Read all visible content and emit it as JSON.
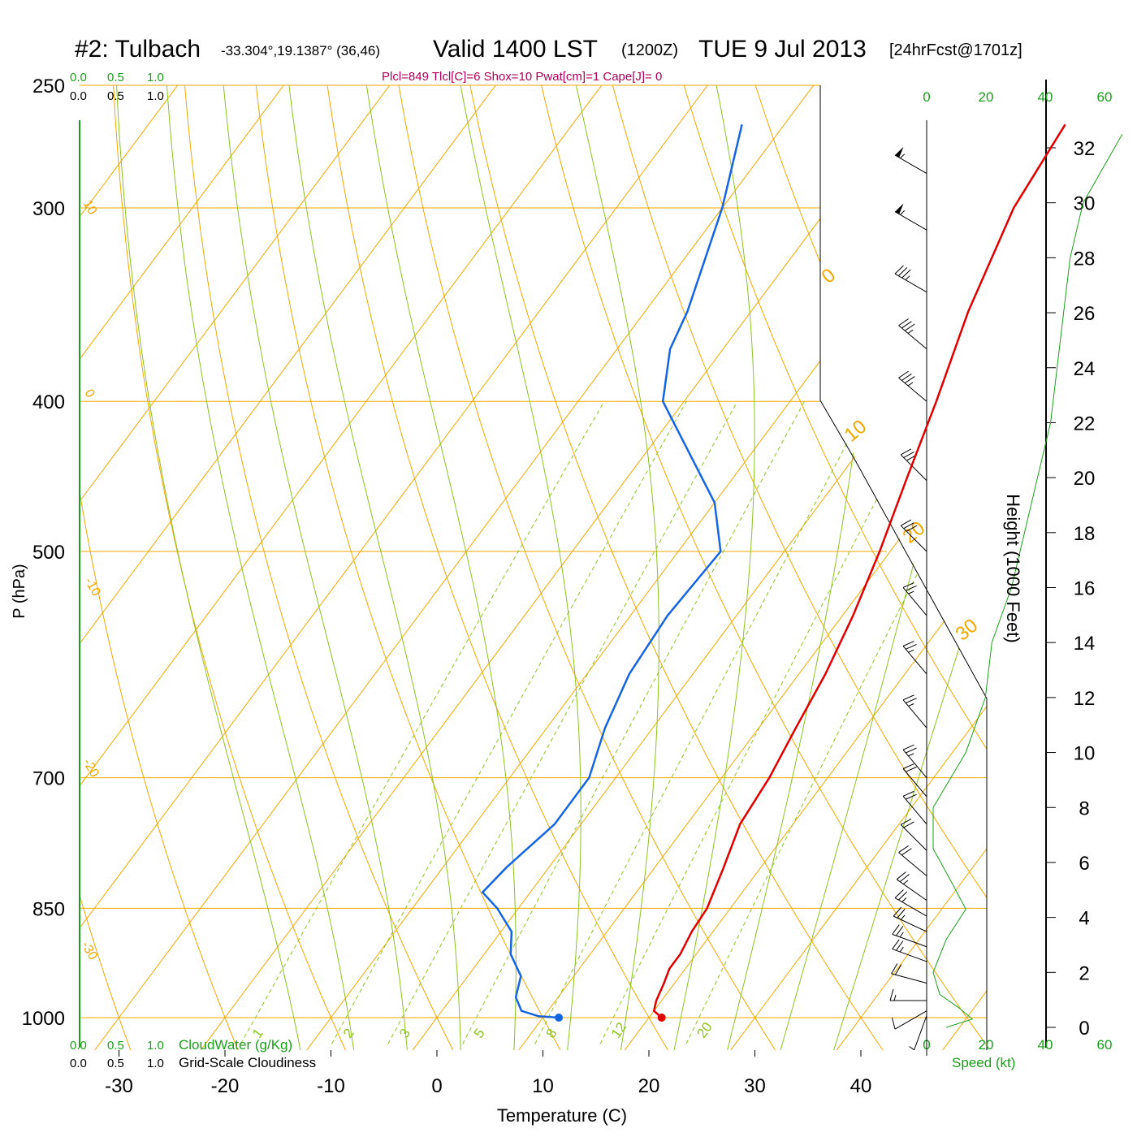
{
  "header": {
    "station": "#2: Tulbach",
    "coords": "-33.304°,19.1387° (36,46)",
    "valid": "Valid 1400 LST",
    "zulu": "(1200Z)",
    "date": "TUE 9 Jul 2013",
    "forecast": "[24hrFcst@1701z]",
    "indices": "Plcl=849 Tlcl[C]=6 Shox=10 Pwat[cm]=1 Cape[J]= 0"
  },
  "colors": {
    "temperature": "#e00000",
    "dewpoint": "#1565e0",
    "isobar_isotherm": "#f0a800",
    "dry_adiabat": "#f0a800",
    "moist_adiabat": "#8cc41e",
    "mixing_ratio": "#8cc41e",
    "green_text": "#1aa01a",
    "indices_text": "#b0005a"
  },
  "chart_data": {
    "type": "line",
    "title": "#2: Tulbach",
    "xlabel": "Temperature (C)",
    "ylabel": "P (hPa)",
    "y2label": "Height (1000 Feet)",
    "x_ticks": [
      -30,
      -20,
      -10,
      0,
      10,
      20,
      30,
      40
    ],
    "p_ticks": [
      250,
      300,
      400,
      500,
      700,
      850,
      1000
    ],
    "height_ticks": [
      0,
      2,
      4,
      6,
      8,
      10,
      12,
      14,
      16,
      18,
      20,
      22,
      24,
      26,
      28,
      30,
      32
    ],
    "x_range": [
      -34,
      36
    ],
    "p_range": [
      250,
      1000
    ],
    "height_range_kft": [
      0,
      32
    ],
    "dry_adiabat_labels": [
      "10",
      "0",
      "-10",
      "-20",
      "-30",
      "0",
      "10",
      "20",
      "30"
    ],
    "mixing_ratio_labels": [
      "1",
      "2",
      "3",
      "5",
      "8",
      "12",
      "20"
    ],
    "cloud_labels": {
      "cloudwater": "CloudWater (g/Kg)",
      "cloudiness": "Grid-Scale Cloudiness",
      "ticks": [
        "0.0",
        "0.5",
        "1.0"
      ]
    },
    "wind_axis": {
      "label": "Speed (kt)",
      "ticks": [
        "0",
        "20",
        "40",
        "60"
      ]
    },
    "series": [
      {
        "name": "Temperature",
        "points": [
          [
            1000,
            21.2
          ],
          [
            990,
            20.0
          ],
          [
            975,
            19.5
          ],
          [
            950,
            19.0
          ],
          [
            930,
            18.5
          ],
          [
            910,
            18.5
          ],
          [
            880,
            18.0
          ],
          [
            850,
            17.8
          ],
          [
            800,
            16.5
          ],
          [
            750,
            15.0
          ],
          [
            700,
            14.5
          ],
          [
            650,
            13.5
          ],
          [
            600,
            12.5
          ],
          [
            550,
            11.0
          ],
          [
            500,
            9.0
          ],
          [
            450,
            6.5
          ],
          [
            400,
            3.8
          ],
          [
            350,
            0.5
          ],
          [
            300,
            -2.5
          ],
          [
            265,
            -3.5
          ]
        ]
      },
      {
        "name": "Dewpoint",
        "points": [
          [
            1000,
            11.5
          ],
          [
            998,
            9.5
          ],
          [
            990,
            7.5
          ],
          [
            970,
            6.0
          ],
          [
            940,
            5.0
          ],
          [
            910,
            2.5
          ],
          [
            880,
            1.0
          ],
          [
            850,
            -2.0
          ],
          [
            830,
            -4.5
          ],
          [
            800,
            -4.0
          ],
          [
            750,
            -2.5
          ],
          [
            700,
            -2.5
          ],
          [
            650,
            -4.5
          ],
          [
            600,
            -6.0
          ],
          [
            550,
            -6.5
          ],
          [
            500,
            -6.0
          ],
          [
            465,
            -10.0
          ],
          [
            400,
            -22.0
          ],
          [
            370,
            -25.0
          ],
          [
            350,
            -26.0
          ],
          [
            300,
            -30.0
          ],
          [
            265,
            -34.0
          ]
        ]
      }
    ],
    "markers": [
      {
        "name": "surface temperature",
        "p": 1000,
        "t": 21.2
      },
      {
        "name": "surface dewpoint",
        "p": 1000,
        "t": 11.5
      }
    ],
    "winds": [
      {
        "p": 997,
        "h_kft": 0.2,
        "speed_kt": 5,
        "dir": 200
      },
      {
        "p": 990,
        "h_kft": 0.5,
        "speed_kt": 10,
        "dir": 240
      },
      {
        "p": 975,
        "h_kft": 1.0,
        "speed_kt": 15,
        "dir": 270
      },
      {
        "p": 950,
        "h_kft": 1.6,
        "speed_kt": 20,
        "dir": 285
      },
      {
        "p": 920,
        "h_kft": 2.6,
        "speed_kt": 25,
        "dir": 290
      },
      {
        "p": 900,
        "h_kft": 3.2,
        "speed_kt": 25,
        "dir": 290
      },
      {
        "p": 880,
        "h_kft": 3.8,
        "speed_kt": 25,
        "dir": 295
      },
      {
        "p": 860,
        "h_kft": 4.4,
        "speed_kt": 25,
        "dir": 300
      },
      {
        "p": 840,
        "h_kft": 5.1,
        "speed_kt": 25,
        "dir": 305
      },
      {
        "p": 810,
        "h_kft": 6.3,
        "speed_kt": 20,
        "dir": 310
      },
      {
        "p": 780,
        "h_kft": 7.3,
        "speed_kt": 20,
        "dir": 315
      },
      {
        "p": 750,
        "h_kft": 8.5,
        "speed_kt": 20,
        "dir": 320
      },
      {
        "p": 720,
        "h_kft": 9.6,
        "speed_kt": 20,
        "dir": 320
      },
      {
        "p": 700,
        "h_kft": 10.3,
        "speed_kt": 25,
        "dir": 320
      },
      {
        "p": 650,
        "h_kft": 12.3,
        "speed_kt": 25,
        "dir": 320
      },
      {
        "p": 600,
        "h_kft": 14.5,
        "speed_kt": 25,
        "dir": 320
      },
      {
        "p": 550,
        "h_kft": 16.8,
        "speed_kt": 25,
        "dir": 320
      },
      {
        "p": 500,
        "h_kft": 19.1,
        "speed_kt": 30,
        "dir": 315
      },
      {
        "p": 450,
        "h_kft": 21.7,
        "speed_kt": 30,
        "dir": 315
      },
      {
        "p": 400,
        "h_kft": 24.4,
        "speed_kt": 35,
        "dir": 310
      },
      {
        "p": 370,
        "h_kft": 26.1,
        "speed_kt": 35,
        "dir": 310
      },
      {
        "p": 340,
        "h_kft": 28.0,
        "speed_kt": 35,
        "dir": 300
      },
      {
        "p": 310,
        "h_kft": 30.0,
        "speed_kt": 55,
        "dir": 300
      },
      {
        "p": 285,
        "h_kft": 31.9,
        "speed_kt": 55,
        "dir": 300
      }
    ],
    "wind_speed_profile": [
      [
        0.0,
        3
      ],
      [
        0.3,
        7
      ],
      [
        0.7,
        5
      ],
      [
        1.2,
        2
      ],
      [
        2.0,
        1
      ],
      [
        3.2,
        3
      ],
      [
        4.3,
        6
      ],
      [
        5.2,
        4
      ],
      [
        6.5,
        1
      ],
      [
        8.0,
        1
      ],
      [
        10.0,
        6
      ],
      [
        12.0,
        9
      ],
      [
        14.0,
        10
      ],
      [
        16.0,
        13
      ],
      [
        18.0,
        15
      ],
      [
        20.0,
        17
      ],
      [
        22.0,
        19
      ],
      [
        24.0,
        20
      ],
      [
        26.0,
        21
      ],
      [
        28.0,
        22
      ],
      [
        30.0,
        24
      ],
      [
        32.5,
        30
      ]
    ]
  }
}
